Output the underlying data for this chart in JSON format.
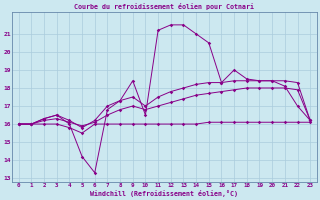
{
  "title": "Courbe du refroidissement éolien pour Cotnari",
  "xlabel": "Windchill (Refroidissement éolien,°C)",
  "x": [
    0,
    1,
    2,
    3,
    4,
    5,
    6,
    7,
    8,
    9,
    10,
    11,
    12,
    13,
    14,
    15,
    16,
    17,
    18,
    19,
    20,
    21,
    22,
    23
  ],
  "line1": [
    16.0,
    16.0,
    16.3,
    16.5,
    16.0,
    14.2,
    13.3,
    16.8,
    17.3,
    18.4,
    16.5,
    21.2,
    21.5,
    21.5,
    21.0,
    20.5,
    18.3,
    19.0,
    18.5,
    18.4,
    18.4,
    18.1,
    17.0,
    16.2
  ],
  "line2": [
    16.0,
    16.0,
    16.0,
    16.0,
    15.8,
    15.5,
    16.0,
    16.0,
    16.0,
    16.0,
    16.0,
    16.0,
    16.0,
    16.0,
    16.0,
    16.1,
    16.1,
    16.1,
    16.1,
    16.1,
    16.1,
    16.1,
    16.1,
    16.1
  ],
  "line3": [
    16.0,
    16.0,
    16.3,
    16.5,
    16.2,
    15.8,
    16.2,
    17.0,
    17.3,
    17.5,
    17.0,
    17.5,
    17.8,
    18.0,
    18.2,
    18.3,
    18.3,
    18.4,
    18.4,
    18.4,
    18.4,
    18.4,
    18.3,
    16.2
  ],
  "line4": [
    16.0,
    16.0,
    16.2,
    16.3,
    16.1,
    15.9,
    16.1,
    16.5,
    16.8,
    17.0,
    16.8,
    17.0,
    17.2,
    17.4,
    17.6,
    17.7,
    17.8,
    17.9,
    18.0,
    18.0,
    18.0,
    18.0,
    17.9,
    16.2
  ],
  "line_color": "#880088",
  "bg_color": "#cce8f0",
  "grid_color": "#aaccdd",
  "ylim": [
    12.8,
    22.2
  ],
  "yticks": [
    13,
    14,
    15,
    16,
    17,
    18,
    19,
    20,
    21
  ],
  "xticks": [
    0,
    1,
    2,
    3,
    4,
    5,
    6,
    7,
    8,
    9,
    10,
    11,
    12,
    13,
    14,
    15,
    16,
    17,
    18,
    19,
    20,
    21,
    22,
    23
  ]
}
